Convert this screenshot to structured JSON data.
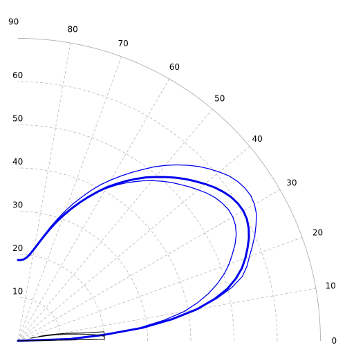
{
  "chart_data": {
    "type": "line",
    "title": "",
    "subtitle": "",
    "coordinate_system": "polar quarter-plane",
    "theta_unit": "degrees",
    "radial_range": [
      0,
      70
    ],
    "radial_grid_values": [
      10,
      20,
      30,
      40,
      50,
      60,
      70
    ],
    "radial_tick_labels": [
      "10",
      "20",
      "30",
      "40",
      "50",
      "60"
    ],
    "angular_ticks": [
      0,
      10,
      20,
      30,
      40,
      50,
      60,
      70,
      80,
      90
    ],
    "angular_tick_labels": [
      "0",
      "10",
      "20",
      "30",
      "40",
      "50",
      "60",
      "70",
      "80",
      "90"
    ],
    "grid": true,
    "legend": "none",
    "colors": {
      "blue": "#0000ee",
      "black": "#000000",
      "grid": "#a7a7a7"
    },
    "series": [
      {
        "color": "#0000ee",
        "line_width": 1.3,
        "theta": [
          0,
          2,
          4,
          6,
          8,
          10,
          12,
          14,
          16,
          18,
          20,
          22,
          24,
          26,
          28,
          30,
          32,
          34,
          36,
          38,
          40,
          42,
          44,
          46,
          48,
          50,
          52,
          54,
          56,
          58,
          60,
          62,
          64,
          66,
          68,
          70,
          72,
          74,
          76,
          78,
          80,
          82,
          84,
          86,
          88,
          90
        ],
        "r": [
          0,
          12,
          20,
          29,
          36,
          42,
          47,
          51,
          54,
          55.7,
          57,
          58.5,
          60,
          61.3,
          62.5,
          63.2,
          63.5,
          63.3,
          62.8,
          62,
          60.8,
          59.5,
          58.1,
          56.5,
          54.8,
          53,
          51.1,
          49,
          47,
          45,
          43,
          41,
          38.8,
          36.5,
          34.3,
          32,
          29.7,
          27.5,
          25.3,
          23.3,
          21.8,
          20.4,
          19.5,
          19,
          18.8,
          18.8
        ]
      },
      {
        "color": "#0000ee",
        "line_width": 3,
        "theta": [
          0,
          2,
          4,
          6,
          8,
          10,
          12,
          14,
          16,
          18,
          20,
          22,
          24,
          26,
          28,
          30,
          32,
          34,
          36,
          38,
          40,
          42,
          44,
          46,
          48,
          50,
          52,
          54,
          56,
          58,
          60,
          62,
          64,
          66,
          68,
          70,
          72,
          74,
          76,
          78,
          80,
          82,
          84,
          86,
          88,
          90
        ],
        "r": [
          0,
          12,
          20,
          29,
          36,
          42,
          46.5,
          50,
          52.5,
          54.5,
          56,
          57.3,
          58.5,
          59.4,
          60,
          60.2,
          60,
          59.5,
          58.7,
          57.7,
          56.5,
          55.2,
          53.9,
          52.5,
          51,
          49.5,
          48,
          46.3,
          44.6,
          42.8,
          41,
          39,
          37,
          35,
          33,
          31,
          29,
          27,
          25,
          23.2,
          21.6,
          20.3,
          19.4,
          18.9,
          18.7,
          18.7
        ]
      },
      {
        "color": "#0000ee",
        "line_width": 1.3,
        "theta": [
          0,
          2,
          4,
          6,
          8,
          10,
          12,
          14,
          16,
          18,
          20,
          22,
          24,
          26,
          28,
          30,
          32,
          34,
          36,
          38,
          40,
          42,
          44,
          46,
          48,
          50,
          52,
          54,
          56,
          58,
          60,
          62,
          64,
          66,
          68,
          70,
          72,
          74,
          76,
          78,
          80,
          82,
          84,
          86,
          88,
          90
        ],
        "r": [
          0,
          12,
          20,
          28,
          34,
          39,
          42.5,
          45.5,
          48,
          50.2,
          52,
          53.5,
          55,
          56.2,
          57,
          57.4,
          57.4,
          57,
          56.4,
          55.5,
          54.4,
          53.3,
          52.1,
          51,
          49.7,
          48.4,
          47,
          45.5,
          44,
          42.4,
          40.7,
          38.9,
          37,
          35.1,
          33.2,
          31.3,
          29.3,
          27.3,
          25.3,
          23.4,
          21.7,
          20.3,
          19.3,
          18.8,
          18.6,
          18.6
        ]
      },
      {
        "color": "#000000",
        "line_width": 1,
        "theta": [
          0,
          1,
          2,
          3,
          4,
          5,
          6,
          7,
          8,
          9,
          10,
          11,
          12
        ],
        "r": [
          0,
          20,
          20,
          20,
          20,
          20,
          20,
          15,
          13,
          11,
          9,
          7,
          5
        ]
      },
      {
        "color": "#000000",
        "line_width": 1,
        "theta": [
          0,
          1,
          2,
          3,
          4,
          5,
          6,
          7,
          8,
          9,
          10,
          11,
          12
        ],
        "r": [
          0,
          20,
          20,
          20,
          19,
          17,
          15,
          13,
          11,
          9,
          7,
          5,
          3
        ]
      }
    ]
  }
}
